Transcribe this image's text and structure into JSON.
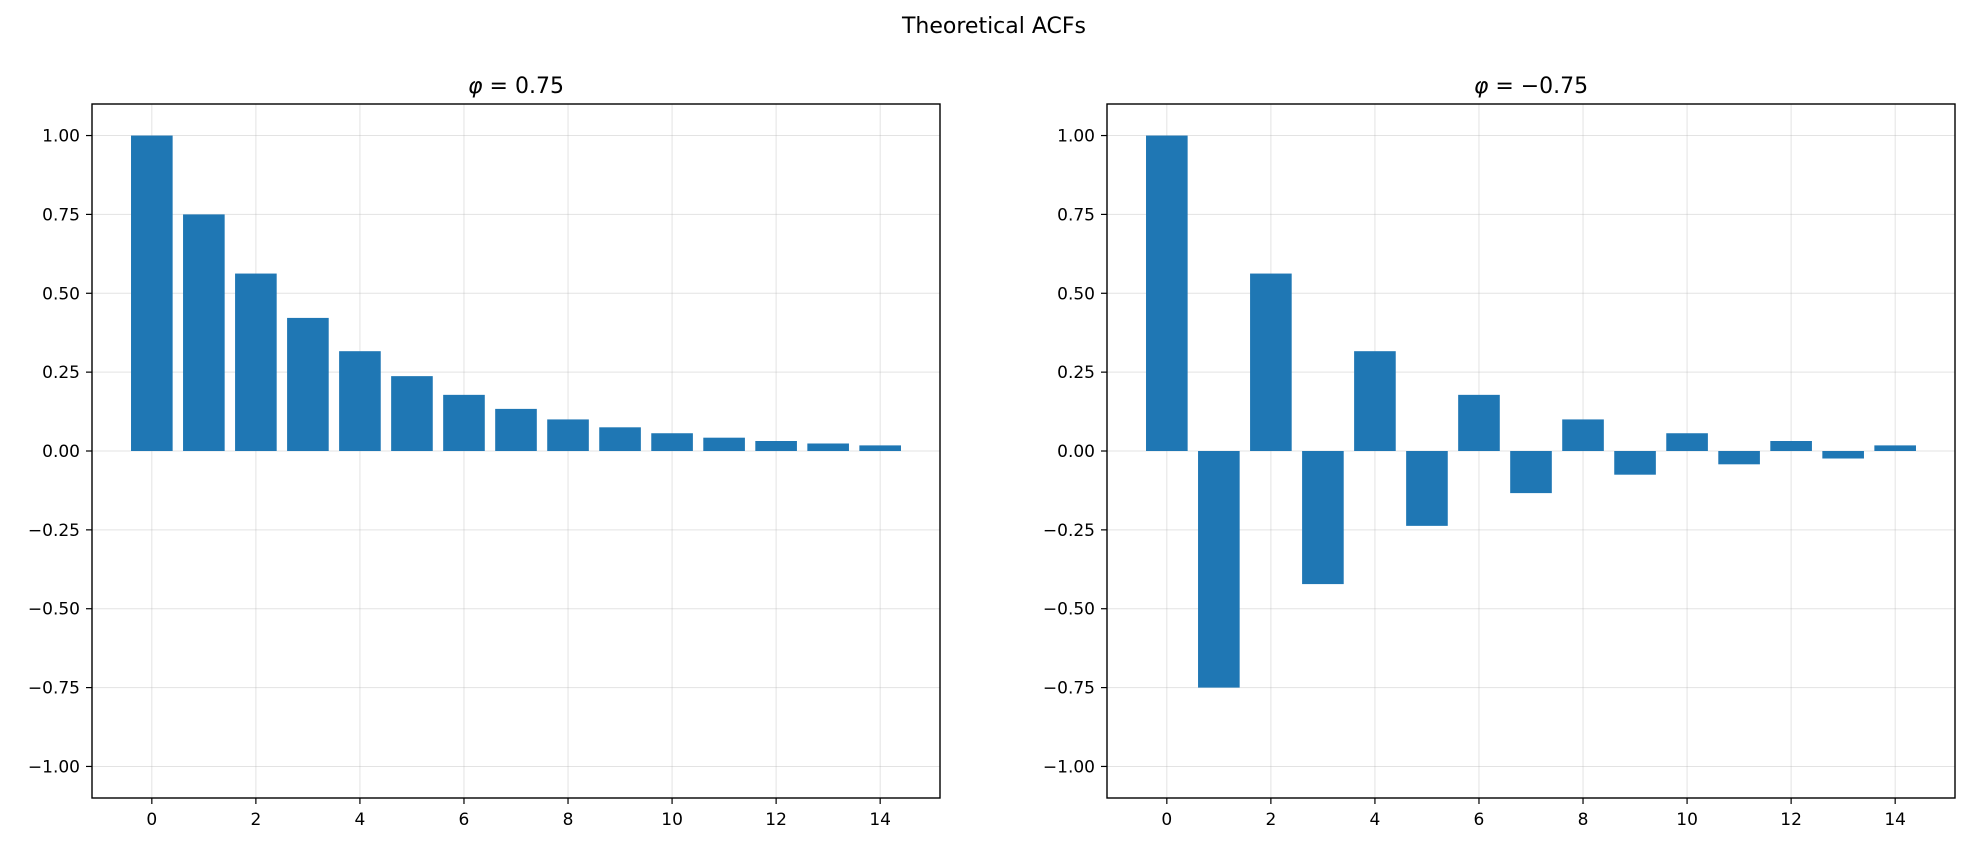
{
  "figure": {
    "title": "Theoretical ACFs"
  },
  "colors": {
    "bar": "#1f77b4",
    "grid": "#b0b0b0"
  },
  "chart_data": [
    {
      "type": "bar",
      "title_symbol": "φ",
      "title_value": " = 0.75",
      "x": [
        0,
        1,
        2,
        3,
        4,
        5,
        6,
        7,
        8,
        9,
        10,
        11,
        12,
        13,
        14
      ],
      "values": [
        1.0,
        0.75,
        0.5625,
        0.4219,
        0.3164,
        0.2373,
        0.178,
        0.1335,
        0.1001,
        0.0751,
        0.0563,
        0.0422,
        0.0317,
        0.0238,
        0.0178
      ],
      "xlim": [
        -1.15,
        15.15
      ],
      "ylim": [
        -1.1,
        1.1
      ],
      "xticks": [
        0,
        2,
        4,
        6,
        8,
        10,
        12,
        14
      ],
      "xtick_labels": [
        "0",
        "2",
        "4",
        "6",
        "8",
        "10",
        "12",
        "14"
      ],
      "yticks": [
        -1.0,
        -0.75,
        -0.5,
        -0.25,
        0.0,
        0.25,
        0.5,
        0.75,
        1.0
      ],
      "ytick_labels": [
        "−1.00",
        "−0.75",
        "−0.50",
        "−0.25",
        "0.00",
        "0.25",
        "0.50",
        "0.75",
        "1.00"
      ],
      "xlabel": "",
      "ylabel": "",
      "grid": true,
      "legend": "none"
    },
    {
      "type": "bar",
      "title_symbol": "φ",
      "title_value": " = −0.75",
      "x": [
        0,
        1,
        2,
        3,
        4,
        5,
        6,
        7,
        8,
        9,
        10,
        11,
        12,
        13,
        14
      ],
      "values": [
        1.0,
        -0.75,
        0.5625,
        -0.4219,
        0.3164,
        -0.2373,
        0.178,
        -0.1335,
        0.1001,
        -0.0751,
        0.0563,
        -0.0422,
        0.0317,
        -0.0238,
        0.0178
      ],
      "xlim": [
        -1.15,
        15.15
      ],
      "ylim": [
        -1.1,
        1.1
      ],
      "xticks": [
        0,
        2,
        4,
        6,
        8,
        10,
        12,
        14
      ],
      "xtick_labels": [
        "0",
        "2",
        "4",
        "6",
        "8",
        "10",
        "12",
        "14"
      ],
      "yticks": [
        -1.0,
        -0.75,
        -0.5,
        -0.25,
        0.0,
        0.25,
        0.5,
        0.75,
        1.0
      ],
      "ytick_labels": [
        "−1.00",
        "−0.75",
        "−0.50",
        "−0.25",
        "0.00",
        "0.25",
        "0.50",
        "0.75",
        "1.00"
      ],
      "xlabel": "",
      "ylabel": "",
      "grid": true,
      "legend": "none"
    }
  ]
}
